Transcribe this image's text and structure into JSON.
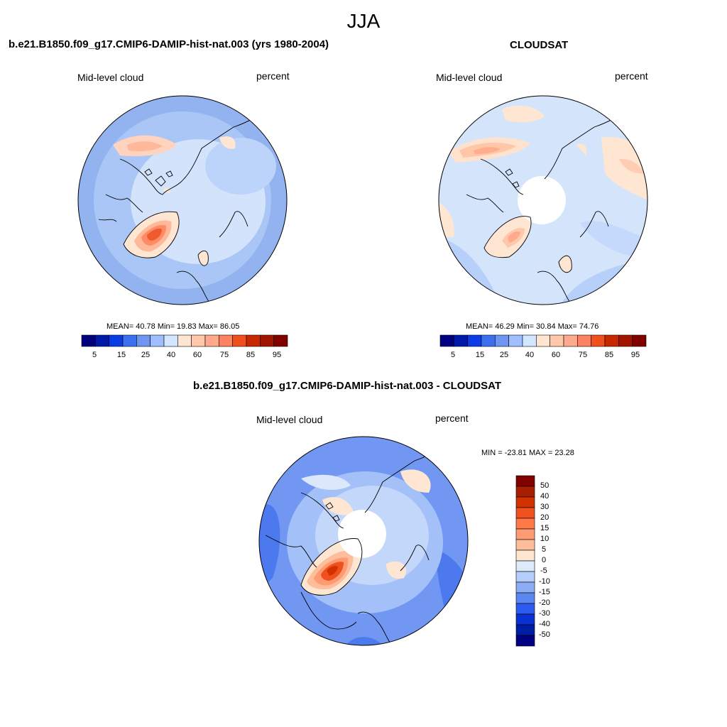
{
  "figure_title": "JJA",
  "panels": [
    {
      "title": "b.e21.B1850.f09_g17.CMIP6-DAMIP-hist-nat.003 (yrs 1980-2004)",
      "variable": "Mid-level cloud",
      "units": "percent",
      "stats": "MEAN=  40.78  Min=  19.83  Max=  86.05",
      "colorbar_labels": [
        "5",
        "15",
        "25",
        "40",
        "60",
        "75",
        "85",
        "95"
      ],
      "has_polar_hole": false
    },
    {
      "title": "CLOUDSAT",
      "variable": "Mid-level cloud",
      "units": "percent",
      "stats": "MEAN=  46.29  Min=  30.84  Max=  74.76",
      "colorbar_labels": [
        "5",
        "15",
        "25",
        "40",
        "60",
        "75",
        "85",
        "95"
      ],
      "has_polar_hole": true
    },
    {
      "title": "b.e21.B1850.f09_g17.CMIP6-DAMIP-hist-nat.003 - CLOUDSAT",
      "variable": "Mid-level cloud",
      "units": "percent",
      "stats": "MIN = -23.81 MAX =  23.28",
      "colorbar_labels": [
        "50",
        "40",
        "30",
        "20",
        "15",
        "10",
        "5",
        "0",
        "-5",
        "-10",
        "-15",
        "-20",
        "-30",
        "-40",
        "-50"
      ],
      "has_polar_hole": true
    }
  ],
  "colors": {
    "abs_scale": [
      "#00007f",
      "#0019a8",
      "#0a3ce6",
      "#3c6ef0",
      "#6e96f0",
      "#a0beff",
      "#d2e6ff",
      "#ffe6d2",
      "#ffc8aa",
      "#ffaa8c",
      "#ff8260",
      "#f0501e",
      "#c82800",
      "#a01400",
      "#800000"
    ],
    "diff_scale": [
      "#800000",
      "#a81e00",
      "#d23200",
      "#f0501e",
      "#ff7846",
      "#ff9b73",
      "#ffbe9b",
      "#ffe6d2",
      "#dcebfa",
      "#b4cdfa",
      "#8cadf5",
      "#5a87f0",
      "#2d5af0",
      "#0a32d2",
      "#001ea5",
      "#000082"
    ],
    "land_outline": "#000000",
    "map_base": "#a7c4f5"
  }
}
